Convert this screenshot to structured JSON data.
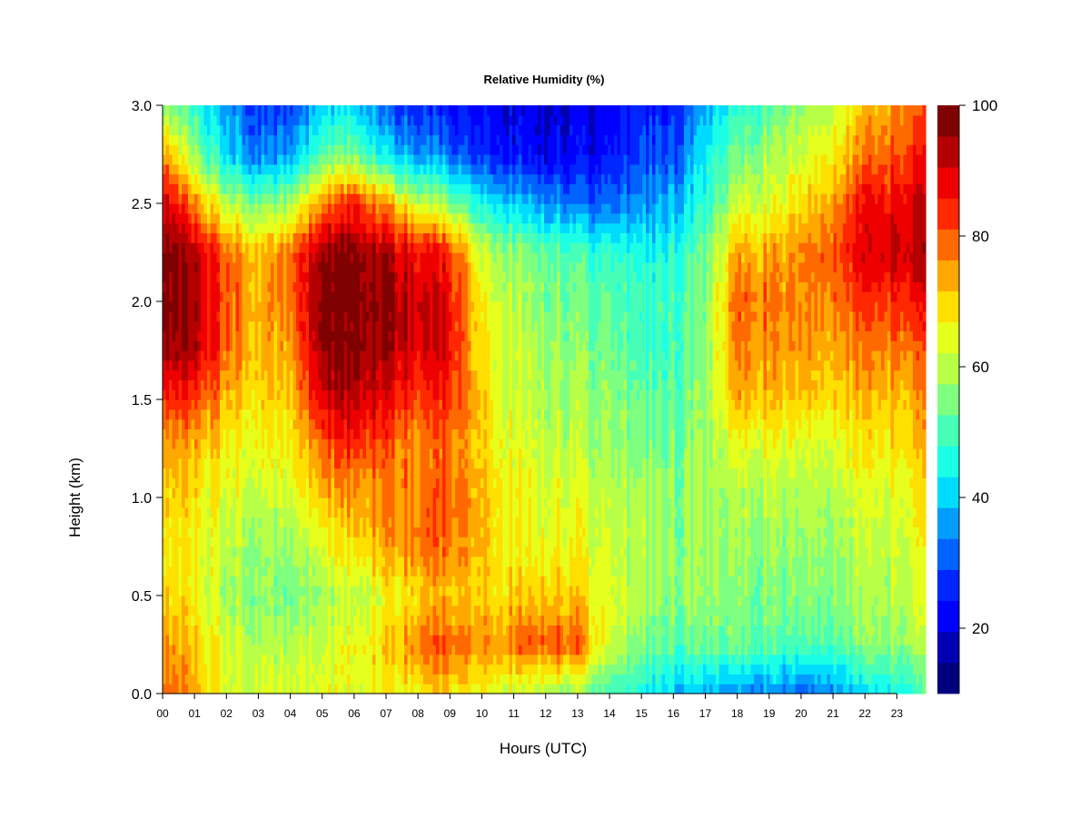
{
  "chart_data": {
    "type": "heatmap",
    "title": "Relative Humidity (%)",
    "xlabel": "Hours (UTC)",
    "ylabel": "Height (km)",
    "x_ticks": [
      "00",
      "01",
      "02",
      "03",
      "04",
      "05",
      "06",
      "07",
      "08",
      "09",
      "10",
      "11",
      "12",
      "13",
      "14",
      "15",
      "16",
      "17",
      "18",
      "19",
      "20",
      "21",
      "22",
      "23"
    ],
    "y_ticks": [
      "0.0",
      "0.5",
      "1.0",
      "1.5",
      "2.0",
      "2.5",
      "3.0"
    ],
    "xlim": [
      0,
      23.9
    ],
    "ylim": [
      0,
      3.0
    ],
    "colorbar": {
      "levels": [
        10,
        15,
        20,
        25,
        30,
        35,
        40,
        45,
        50,
        55,
        60,
        65,
        70,
        75,
        80,
        85,
        90,
        95,
        100
      ],
      "ticks": [
        "20",
        "40",
        "60",
        "80",
        "100"
      ],
      "colors": [
        "#00007f",
        "#0000b2",
        "#0000ff",
        "#0026ff",
        "#0062ff",
        "#009cff",
        "#00dcff",
        "#1cffe6",
        "#48ffb8",
        "#7fff7f",
        "#b8ff48",
        "#e6ff1c",
        "#ffdf00",
        "#ffa800",
        "#ff6a00",
        "#ff2800",
        "#ee0000",
        "#b40000",
        "#7f0000"
      ]
    },
    "grid": false,
    "hours": [
      0,
      1,
      2,
      3,
      4,
      5,
      6,
      7,
      8,
      9,
      10,
      11,
      12,
      13,
      14,
      15,
      16,
      17,
      18,
      19,
      20,
      21,
      22,
      23,
      23.9
    ],
    "heights_km": [
      0.0,
      0.25,
      0.5,
      0.75,
      1.0,
      1.25,
      1.5,
      1.75,
      2.0,
      2.25,
      2.5,
      2.75,
      3.0
    ],
    "values": [
      [
        82,
        72,
        65,
        62,
        62,
        64,
        65,
        66,
        68,
        70,
        65,
        62,
        58,
        56,
        50,
        44,
        40,
        36,
        35,
        36,
        30,
        35,
        40,
        45,
        48
      ],
      [
        78,
        70,
        64,
        58,
        60,
        62,
        66,
        70,
        78,
        80,
        75,
        78,
        82,
        80,
        62,
        54,
        52,
        52,
        54,
        52,
        50,
        52,
        55,
        57,
        58
      ],
      [
        72,
        66,
        60,
        54,
        54,
        58,
        62,
        65,
        70,
        72,
        70,
        70,
        72,
        70,
        64,
        58,
        56,
        55,
        56,
        55,
        55,
        56,
        58,
        60,
        62
      ],
      [
        70,
        66,
        62,
        56,
        56,
        64,
        70,
        74,
        78,
        78,
        72,
        66,
        66,
        66,
        62,
        58,
        56,
        56,
        58,
        57,
        56,
        58,
        60,
        62,
        64
      ],
      [
        72,
        68,
        64,
        60,
        62,
        72,
        76,
        76,
        78,
        80,
        72,
        66,
        64,
        64,
        60,
        58,
        56,
        57,
        60,
        60,
        58,
        60,
        62,
        64,
        66
      ],
      [
        76,
        72,
        68,
        64,
        66,
        80,
        84,
        80,
        76,
        78,
        70,
        64,
        62,
        60,
        58,
        54,
        54,
        56,
        64,
        64,
        62,
        64,
        66,
        68,
        70
      ],
      [
        86,
        82,
        74,
        68,
        70,
        90,
        94,
        88,
        82,
        84,
        70,
        62,
        60,
        58,
        56,
        52,
        52,
        56,
        74,
        72,
        70,
        70,
        72,
        72,
        74
      ],
      [
        97,
        92,
        80,
        70,
        74,
        97,
        98,
        94,
        90,
        88,
        68,
        62,
        58,
        56,
        54,
        48,
        50,
        54,
        78,
        76,
        74,
        74,
        76,
        78,
        78
      ],
      [
        100,
        94,
        82,
        72,
        78,
        98,
        99,
        96,
        92,
        88,
        66,
        60,
        56,
        54,
        52,
        48,
        50,
        54,
        80,
        78,
        76,
        78,
        82,
        84,
        86
      ],
      [
        100,
        92,
        80,
        70,
        78,
        96,
        98,
        94,
        88,
        84,
        62,
        56,
        54,
        50,
        48,
        44,
        46,
        52,
        74,
        74,
        76,
        82,
        88,
        92,
        92
      ],
      [
        94,
        76,
        62,
        54,
        58,
        76,
        86,
        74,
        62,
        56,
        44,
        40,
        36,
        32,
        32,
        34,
        38,
        46,
        62,
        64,
        68,
        76,
        86,
        88,
        90
      ],
      [
        78,
        56,
        42,
        32,
        36,
        52,
        56,
        42,
        36,
        32,
        26,
        24,
        22,
        22,
        24,
        28,
        30,
        42,
        54,
        58,
        62,
        68,
        76,
        82,
        84
      ],
      [
        60,
        46,
        38,
        26,
        28,
        40,
        42,
        30,
        26,
        24,
        22,
        20,
        20,
        20,
        22,
        24,
        26,
        36,
        48,
        52,
        56,
        62,
        70,
        76,
        78
      ]
    ]
  }
}
